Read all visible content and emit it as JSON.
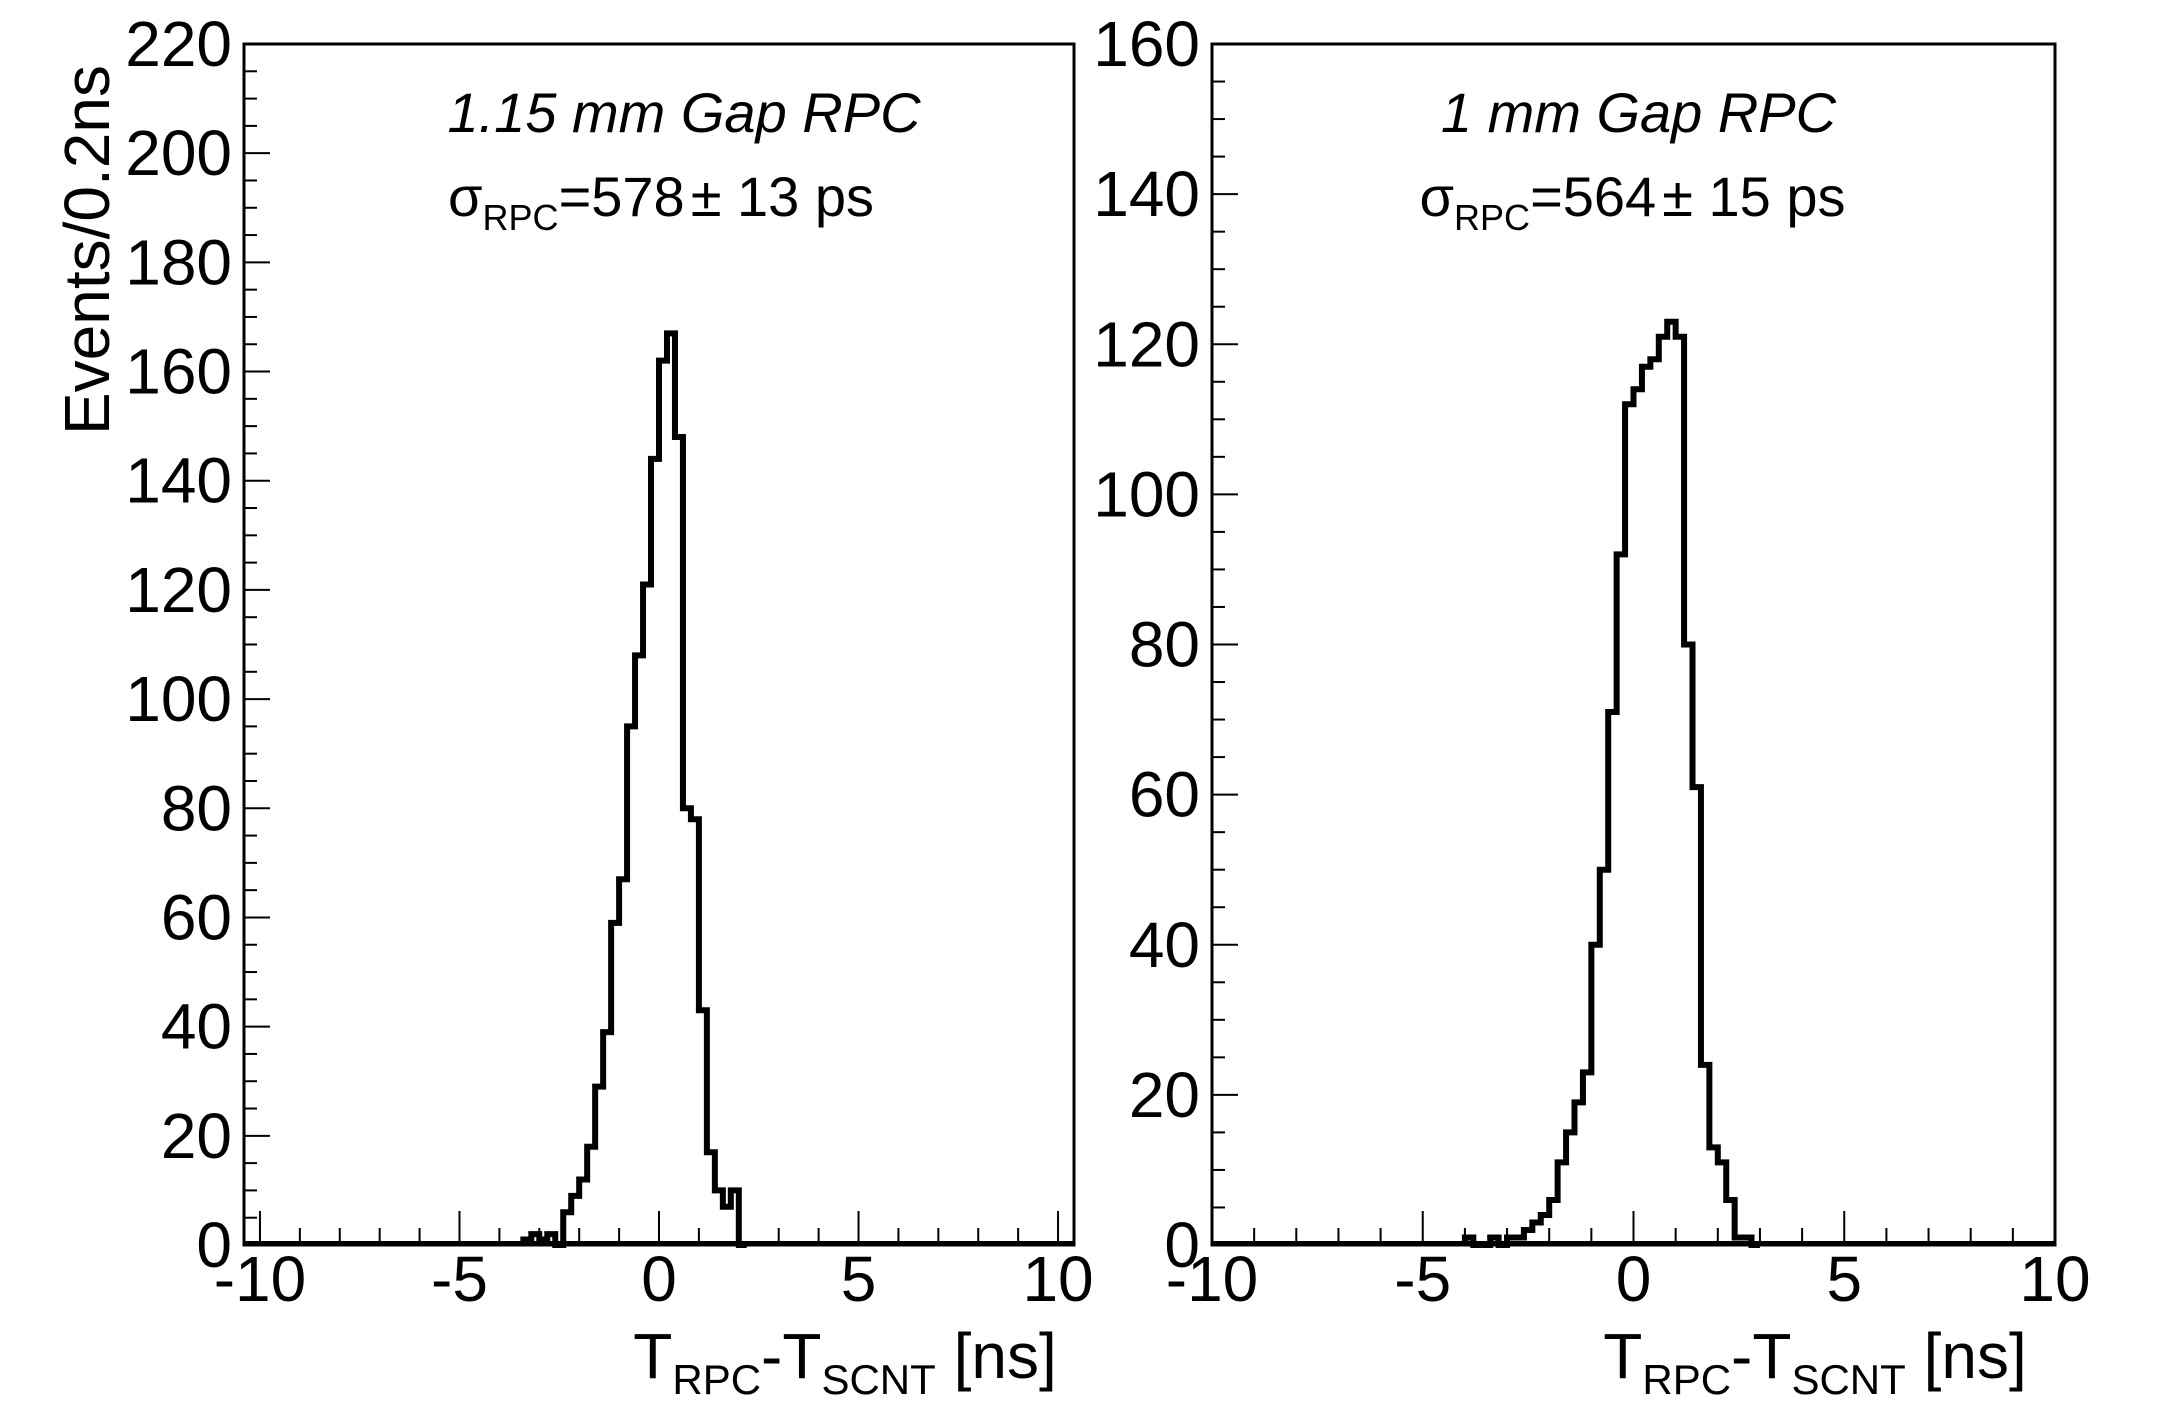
{
  "figure": {
    "y_axis_title": "Events/0.2ns"
  },
  "chart_data": [
    {
      "type": "histogram",
      "title": "1.15 mm Gap RPC",
      "sigma_symbol": "σ",
      "sigma_subscript": "RPC",
      "sigma_value": "=578",
      "pm": "±",
      "sigma_error": "13 ps",
      "xlabel_main1": "T",
      "xlabel_sub1": "RPC",
      "xlabel_main2": "-T",
      "xlabel_sub2": "SCNT",
      "xlabel_unit": " [ns]",
      "ylabel": "Events/0.2ns",
      "xlim": [
        -10.4,
        10.4
      ],
      "ylim": [
        0,
        220
      ],
      "xticks": [
        -10,
        -5,
        0,
        5,
        10
      ],
      "xtick_labels": [
        "-10",
        "-5",
        "0",
        "5",
        "10"
      ],
      "yticks": [
        0,
        20,
        40,
        60,
        80,
        100,
        120,
        140,
        160,
        180,
        200,
        220
      ],
      "ytick_labels": [
        "0",
        "20",
        "40",
        "60",
        "80",
        "100",
        "120",
        "140",
        "160",
        "180",
        "200",
        "220"
      ],
      "bin_width": 0.2,
      "bin_edges_start": -3.4,
      "values": [
        1,
        2,
        1,
        2,
        0,
        6,
        9,
        12,
        18,
        29,
        39,
        59,
        67,
        95,
        108,
        121,
        144,
        162,
        167,
        148,
        80,
        78,
        43,
        17,
        10,
        7,
        10,
        0
      ]
    },
    {
      "type": "histogram",
      "title": "1 mm Gap RPC",
      "sigma_symbol": "σ",
      "sigma_subscript": "RPC",
      "sigma_value": "=564",
      "pm": "±",
      "sigma_error": "15 ps",
      "xlabel_main1": "T",
      "xlabel_sub1": "RPC",
      "xlabel_main2": "-T",
      "xlabel_sub2": "SCNT",
      "xlabel_unit": " [ns]",
      "xlim": [
        -10,
        10
      ],
      "ylim": [
        0,
        160
      ],
      "xticks": [
        -10,
        -5,
        0,
        5,
        10
      ],
      "xtick_labels": [
        "-10",
        "-5",
        "0",
        "5",
        "10"
      ],
      "yticks": [
        0,
        20,
        40,
        60,
        80,
        100,
        120,
        140,
        160
      ],
      "ytick_labels": [
        "0",
        "20",
        "40",
        "60",
        "80",
        "100",
        "120",
        "140",
        "160"
      ],
      "bin_width": 0.2,
      "bin_edges_start": -4.0,
      "values": [
        1,
        0,
        0,
        1,
        0,
        1,
        1,
        2,
        3,
        4,
        6,
        11,
        15,
        19,
        23,
        40,
        50,
        71,
        92,
        112,
        114,
        117,
        118,
        121,
        123,
        121,
        80,
        61,
        24,
        13,
        11,
        6,
        1,
        1,
        0
      ]
    }
  ]
}
